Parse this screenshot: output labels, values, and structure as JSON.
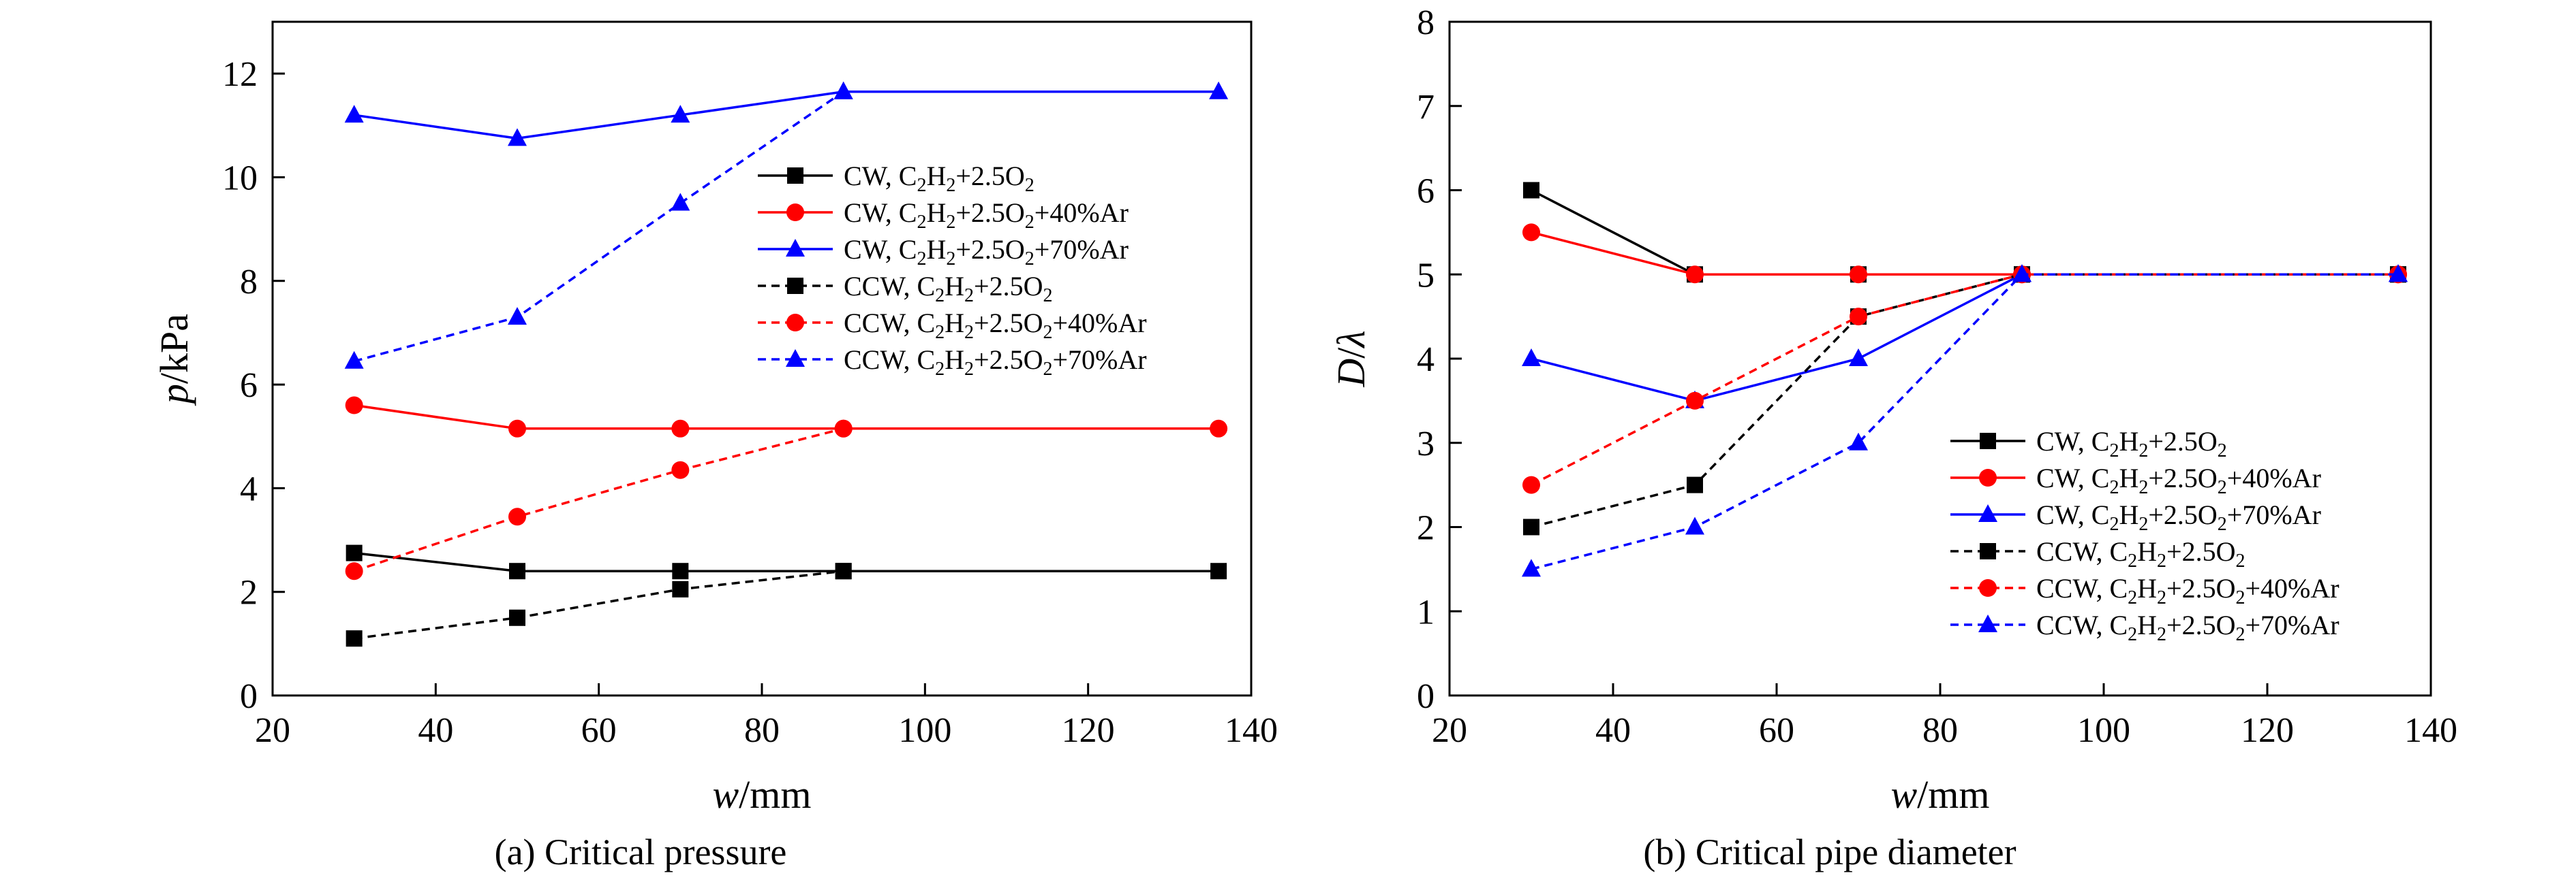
{
  "chart_data": [
    {
      "type": "line",
      "id": "a",
      "caption": "(a) Critical pressure",
      "title": "",
      "xlabel": {
        "italic": "w",
        "rest": "/mm"
      },
      "ylabel": {
        "italic": "p",
        "rest": "/kPa"
      },
      "xlim": [
        20,
        140
      ],
      "ylim": [
        0,
        13
      ],
      "xticks": [
        20,
        40,
        60,
        80,
        100,
        120,
        140
      ],
      "yticks": [
        0,
        2,
        4,
        6,
        8,
        10,
        12
      ],
      "grid": false,
      "legend_position": "middle-right",
      "x": [
        30,
        50,
        70,
        90,
        136
      ],
      "series": [
        {
          "name": "CW, C2H2+2.5O2",
          "label_parts": [
            "CW, C",
            "2",
            "H",
            "2",
            "+2.5O",
            "2",
            ""
          ],
          "color": "#000000",
          "dash": false,
          "marker": "square",
          "values": [
            2.75,
            2.4,
            2.4,
            2.4,
            2.4
          ]
        },
        {
          "name": "CW, C2H2+2.5O2+40%Ar",
          "label_parts": [
            "CW, C",
            "2",
            "H",
            "2",
            "+2.5O",
            "2",
            "+40%Ar"
          ],
          "color": "#ff0000",
          "dash": false,
          "marker": "circle",
          "values": [
            5.6,
            5.15,
            5.15,
            5.15,
            5.15
          ]
        },
        {
          "name": "CW, C2H2+2.5O2+70%Ar",
          "label_parts": [
            "CW, C",
            "2",
            "H",
            "2",
            "+2.5O",
            "2",
            "+70%Ar"
          ],
          "color": "#0000ff",
          "dash": false,
          "marker": "triangle",
          "values": [
            11.2,
            10.75,
            11.2,
            11.65,
            11.65
          ]
        },
        {
          "name": "CCW, C2H2+2.5O2",
          "label_parts": [
            "CCW, C",
            "2",
            "H",
            "2",
            "+2.5O",
            "2",
            ""
          ],
          "color": "#000000",
          "dash": true,
          "marker": "square",
          "values": [
            1.1,
            1.5,
            2.05,
            2.4,
            null
          ]
        },
        {
          "name": "CCW, C2H2+2.5O2+40%Ar",
          "label_parts": [
            "CCW, C",
            "2",
            "H",
            "2",
            "+2.5O",
            "2",
            "+40%Ar"
          ],
          "color": "#ff0000",
          "dash": true,
          "marker": "circle",
          "values": [
            2.4,
            3.45,
            4.35,
            5.15,
            null
          ]
        },
        {
          "name": "CCW, C2H2+2.5O2+70%Ar",
          "label_parts": [
            "CCW, C",
            "2",
            "H",
            "2",
            "+2.5O",
            "2",
            "+70%Ar"
          ],
          "color": "#0000ff",
          "dash": true,
          "marker": "triangle",
          "values": [
            6.45,
            7.3,
            9.5,
            11.65,
            null
          ]
        }
      ]
    },
    {
      "type": "line",
      "id": "b",
      "caption": "(b) Critical pipe diameter",
      "title": "",
      "xlabel": {
        "italic": "w",
        "rest": "/mm"
      },
      "ylabel": {
        "italic": "D",
        "rest": "/",
        "italic2": "λ"
      },
      "xlim": [
        20,
        140
      ],
      "ylim": [
        0,
        8
      ],
      "xticks": [
        20,
        40,
        60,
        80,
        100,
        120,
        140
      ],
      "yticks": [
        0,
        1,
        2,
        3,
        4,
        5,
        6,
        7,
        8
      ],
      "grid": false,
      "legend_position": "lower-right",
      "x": [
        30,
        50,
        70,
        90,
        136
      ],
      "series": [
        {
          "name": "CW, C2H2+2.5O2",
          "label_parts": [
            "CW, C",
            "2",
            "H",
            "2",
            "+2.5O",
            "2",
            ""
          ],
          "color": "#000000",
          "dash": false,
          "marker": "square",
          "values": [
            6,
            5,
            5,
            5,
            5
          ]
        },
        {
          "name": "CW, C2H2+2.5O2+40%Ar",
          "label_parts": [
            "CW, C",
            "2",
            "H",
            "2",
            "+2.5O",
            "2",
            "+40%Ar"
          ],
          "color": "#ff0000",
          "dash": false,
          "marker": "circle",
          "values": [
            5.5,
            5,
            5,
            5,
            5
          ]
        },
        {
          "name": "CW, C2H2+2.5O2+70%Ar",
          "label_parts": [
            "CW, C",
            "2",
            "H",
            "2",
            "+2.5O",
            "2",
            "+70%Ar"
          ],
          "color": "#0000ff",
          "dash": false,
          "marker": "triangle",
          "values": [
            4,
            3.5,
            4,
            5,
            5
          ]
        },
        {
          "name": "CCW, C2H2+2.5O2",
          "label_parts": [
            "CCW, C",
            "2",
            "H",
            "2",
            "+2.5O",
            "2",
            ""
          ],
          "color": "#000000",
          "dash": true,
          "marker": "square",
          "values": [
            2,
            2.5,
            4.5,
            5,
            5
          ]
        },
        {
          "name": "CCW, C2H2+2.5O2+40%Ar",
          "label_parts": [
            "CCW, C",
            "2",
            "H",
            "2",
            "+2.5O",
            "2",
            "+40%Ar"
          ],
          "color": "#ff0000",
          "dash": true,
          "marker": "circle",
          "values": [
            2.5,
            3.5,
            4.5,
            5,
            5
          ]
        },
        {
          "name": "CCW, C2H2+2.5O2+70%Ar",
          "label_parts": [
            "CCW, C",
            "2",
            "H",
            "2",
            "+2.5O",
            "2",
            "+70%Ar"
          ],
          "color": "#0000ff",
          "dash": true,
          "marker": "triangle",
          "values": [
            1.5,
            2,
            3,
            5,
            5
          ]
        }
      ]
    }
  ]
}
